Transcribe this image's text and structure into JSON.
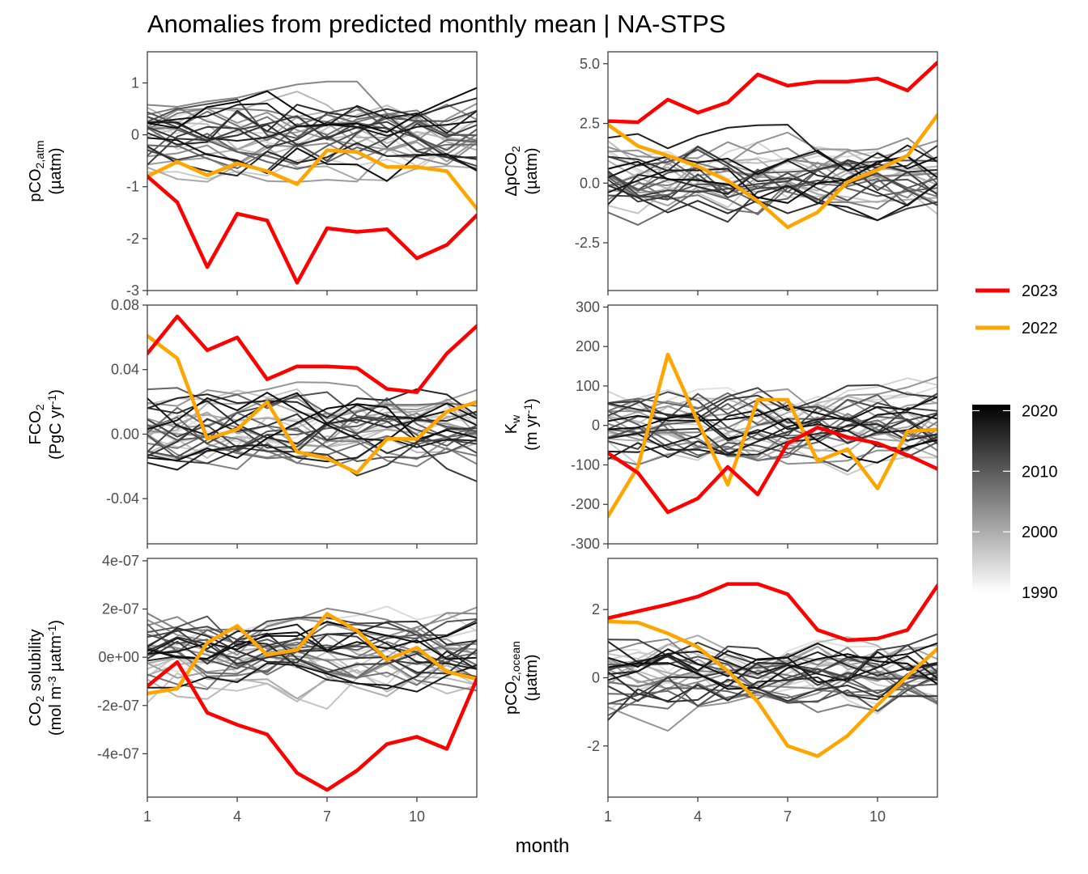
{
  "title": "Anomalies from predicted monthly mean | NA-STPS",
  "xlabel": "month",
  "legend": {
    "highlight": [
      {
        "name": "2023",
        "color": "#ff0000"
      },
      {
        "name": "2022",
        "color": "#ffa500"
      }
    ],
    "gradient": {
      "ticks": [
        "2020",
        "2010",
        "2000",
        "1990"
      ],
      "min_year": 1990,
      "max_year": 2021,
      "color_low": "#ffffff",
      "color_high": "#000000"
    }
  },
  "chart_data": [
    {
      "id": "pco2atm",
      "type": "line",
      "ylabel_lines": [
        {
          "parts": [
            {
              "t": "pCO"
            },
            {
              "t": "2,atm",
              "s": "sub"
            }
          ]
        },
        {
          "parts": [
            {
              "t": "(µatm)"
            }
          ]
        }
      ],
      "xlim": [
        1,
        12
      ],
      "ylim": [
        -3,
        1.6
      ],
      "xticks": [
        1,
        4,
        7,
        10
      ],
      "xtick_labels": [
        "1",
        "4",
        "7",
        "10"
      ],
      "yticks": [
        -3,
        -2,
        -1,
        0,
        1
      ],
      "ytick_labels": [
        "-3",
        "-2",
        "-1",
        "0",
        "1"
      ],
      "series": [
        {
          "name": "2023",
          "values": [
            -0.8,
            -1.3,
            -2.55,
            -1.52,
            -1.65,
            -2.85,
            -1.8,
            -1.87,
            -1.82,
            -2.38,
            -2.12,
            -1.55
          ]
        },
        {
          "name": "2022",
          "values": [
            -0.8,
            -0.52,
            -0.78,
            -0.55,
            -0.7,
            -0.95,
            -0.3,
            -0.33,
            -0.62,
            -0.62,
            -0.7,
            -1.42
          ]
        }
      ]
    },
    {
      "id": "dpco2",
      "type": "line",
      "ylabel_lines": [
        {
          "parts": [
            {
              "t": "ΔpCO"
            },
            {
              "t": "2",
              "s": "sub"
            }
          ]
        },
        {
          "parts": [
            {
              "t": "(µatm)"
            }
          ]
        }
      ],
      "xlim": [
        1,
        12
      ],
      "ylim": [
        -4.5,
        5.5
      ],
      "xticks": [
        1,
        4,
        7,
        10
      ],
      "xtick_labels": [
        "1",
        "4",
        "7",
        "10"
      ],
      "yticks": [
        -2.5,
        0,
        2.5,
        5
      ],
      "ytick_labels": [
        "-2.5",
        "0.0",
        "2.5",
        "5.0"
      ],
      "series": [
        {
          "name": "2023",
          "values": [
            2.6,
            2.55,
            3.5,
            2.95,
            3.38,
            4.55,
            4.08,
            4.25,
            4.25,
            4.38,
            3.88,
            5.05
          ]
        },
        {
          "name": "2022",
          "values": [
            2.45,
            1.55,
            1.15,
            0.7,
            0.1,
            -0.75,
            -1.85,
            -1.22,
            0.05,
            0.55,
            1.15,
            2.85
          ]
        }
      ]
    },
    {
      "id": "fco2",
      "type": "line",
      "ylabel_lines": [
        {
          "parts": [
            {
              "t": "FCO"
            },
            {
              "t": "2",
              "s": "sub"
            }
          ]
        },
        {
          "parts": [
            {
              "t": "(PgC yr"
            },
            {
              "t": "-1",
              "s": "sup"
            },
            {
              "t": ")"
            }
          ]
        }
      ],
      "xlim": [
        1,
        12
      ],
      "ylim": [
        -0.068,
        0.08
      ],
      "xticks": [
        1,
        4,
        7,
        10
      ],
      "xtick_labels": [
        "1",
        "4",
        "7",
        "10"
      ],
      "yticks": [
        -0.04,
        0,
        0.04,
        0.08
      ],
      "ytick_labels": [
        "-0.04",
        "0.00",
        "0.04",
        "0.08"
      ],
      "series": [
        {
          "name": "2023",
          "values": [
            0.05,
            0.073,
            0.052,
            0.06,
            0.034,
            0.042,
            0.042,
            0.041,
            0.028,
            0.026,
            0.05,
            0.067
          ]
        },
        {
          "name": "2022",
          "values": [
            0.061,
            0.047,
            -0.003,
            0.003,
            0.02,
            -0.011,
            -0.015,
            -0.024,
            -0.003,
            -0.003,
            0.014,
            0.02
          ]
        }
      ]
    },
    {
      "id": "kw",
      "type": "line",
      "ylabel_lines": [
        {
          "parts": [
            {
              "t": "K"
            },
            {
              "t": "w",
              "s": "sub"
            }
          ]
        },
        {
          "parts": [
            {
              "t": "(m yr"
            },
            {
              "t": "-1",
              "s": "sup"
            },
            {
              "t": ")"
            }
          ]
        }
      ],
      "xlim": [
        1,
        12
      ],
      "ylim": [
        -300,
        305
      ],
      "xticks": [
        1,
        4,
        7,
        10
      ],
      "xtick_labels": [
        "1",
        "4",
        "7",
        "10"
      ],
      "yticks": [
        -300,
        -200,
        -100,
        0,
        100,
        200,
        300
      ],
      "ytick_labels": [
        "-300",
        "-200",
        "-100",
        "0",
        "100",
        "200",
        "300"
      ],
      "series": [
        {
          "name": "2023",
          "values": [
            -70,
            -120,
            -220,
            -185,
            -105,
            -175,
            -45,
            -5,
            -30,
            -45,
            -75,
            -110
          ]
        },
        {
          "name": "2022",
          "values": [
            -230,
            -105,
            180,
            10,
            -150,
            65,
            65,
            -90,
            -60,
            -160,
            -15,
            -10
          ]
        }
      ]
    },
    {
      "id": "solubility",
      "type": "line",
      "ylabel_lines": [
        {
          "parts": [
            {
              "t": "CO"
            },
            {
              "t": "2",
              "s": "sub"
            },
            {
              "t": " solubility"
            }
          ]
        },
        {
          "parts": [
            {
              "t": "(mol m"
            },
            {
              "t": "-3",
              "s": "sup"
            },
            {
              "t": " µatm"
            },
            {
              "t": "-1",
              "s": "sup"
            },
            {
              "t": ")"
            }
          ]
        }
      ],
      "xlim": [
        1,
        12
      ],
      "ylim": [
        -5.8e-07,
        4.1e-07
      ],
      "xticks": [
        1,
        4,
        7,
        10
      ],
      "xtick_labels": [
        "1",
        "4",
        "7",
        "10"
      ],
      "yticks": [
        -4e-07,
        -2e-07,
        0,
        2e-07,
        4e-07
      ],
      "ytick_labels": [
        "-4e-07",
        "-2e-07",
        "0e+00",
        "2e-07",
        "4e-07"
      ],
      "series": [
        {
          "name": "2023",
          "values": [
            -1.2e-07,
            -2e-08,
            -2.3e-07,
            -2.8e-07,
            -3.2e-07,
            -4.8e-07,
            -5.5e-07,
            -4.7e-07,
            -3.6e-07,
            -3.3e-07,
            -3.8e-07,
            -9e-08
          ]
        },
        {
          "name": "2022",
          "values": [
            -1.5e-07,
            -1.3e-07,
            6e-08,
            1.3e-07,
            1e-08,
            3e-08,
            1.8e-07,
            1.1e-07,
            -1e-08,
            4e-08,
            -6e-08,
            -9e-08
          ]
        }
      ]
    },
    {
      "id": "pco2ocean",
      "type": "line",
      "ylabel_lines": [
        {
          "parts": [
            {
              "t": "pCO"
            },
            {
              "t": "2,ocean",
              "s": "sub"
            }
          ]
        },
        {
          "parts": [
            {
              "t": "(µatm)"
            }
          ]
        }
      ],
      "xlim": [
        1,
        12
      ],
      "ylim": [
        -3.5,
        3.5
      ],
      "xticks": [
        1,
        4,
        7,
        10
      ],
      "xtick_labels": [
        "1",
        "4",
        "7",
        "10"
      ],
      "yticks": [
        -2,
        0,
        2
      ],
      "ytick_labels": [
        "-2",
        "0",
        "2"
      ],
      "series": [
        {
          "name": "2023",
          "values": [
            1.75,
            1.95,
            2.15,
            2.38,
            2.75,
            2.75,
            2.45,
            1.4,
            1.1,
            1.15,
            1.4,
            2.7
          ]
        },
        {
          "name": "2022",
          "values": [
            1.65,
            1.62,
            1.3,
            0.9,
            0.2,
            -0.7,
            -2.0,
            -2.3,
            -1.7,
            -0.8,
            0.05,
            0.85
          ]
        }
      ]
    }
  ]
}
